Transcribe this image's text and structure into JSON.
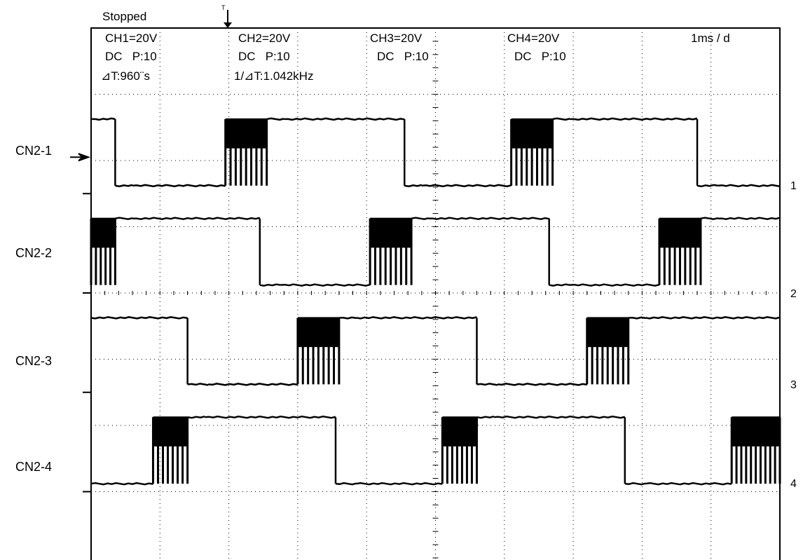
{
  "status": "Stopped",
  "trigger_marker": "T",
  "channels": [
    {
      "name": "CH1=20V",
      "coupling": "DC   P:10"
    },
    {
      "name": "CH2=20V",
      "coupling": "DC   P:10"
    },
    {
      "name": "CH3=20V",
      "coupling": "DC   P:10"
    },
    {
      "name": "CH4=20V",
      "coupling": "DC   P:10"
    }
  ],
  "cursor_delta_t": "⊿T:960¨s",
  "cursor_freq": "1/⊿T:1.042kHz",
  "timebase": "1ms / d",
  "trace_labels": [
    "CN2-1",
    "CN2-2",
    "CN2-3",
    "CN2-4"
  ],
  "ground_markers": [
    "1",
    "2",
    "3",
    "4"
  ],
  "colors": {
    "trace": "#000000",
    "grid": "#000000",
    "background": "#ffffff"
  },
  "chart_data": {
    "type": "line",
    "title": "",
    "xlabel": "",
    "ylabel": "",
    "x_unit": "ms",
    "xlim": [
      0,
      10
    ],
    "divisions_x": 10,
    "divisions_y": 8,
    "grid": "dotted",
    "series": [
      {
        "name": "CN2-1",
        "high_v": 22.5,
        "low_v": 2.4,
        "ground_div": 5.5,
        "levels": [
          [
            0,
            0.35,
            "high"
          ],
          [
            0.35,
            0.6,
            "low"
          ],
          [
            0.6,
            1.95,
            "low"
          ],
          [
            1.95,
            2.55,
            "pwm"
          ],
          [
            2.55,
            2.8,
            "high"
          ],
          [
            2.8,
            4.55,
            "high"
          ],
          [
            4.55,
            4.8,
            "low"
          ],
          [
            4.8,
            6.1,
            "low"
          ],
          [
            6.1,
            6.7,
            "pwm"
          ],
          [
            6.7,
            6.95,
            "high"
          ],
          [
            6.95,
            8.8,
            "high"
          ],
          [
            8.8,
            9.1,
            "low"
          ],
          [
            9.1,
            10,
            "low"
          ]
        ]
      },
      {
        "name": "CN2-2",
        "high_v": 22.5,
        "low_v": 2.4,
        "ground_div": 4.0,
        "levels": [
          [
            0,
            0.35,
            "pwm"
          ],
          [
            0.35,
            0.6,
            "high"
          ],
          [
            0.6,
            2.45,
            "high"
          ],
          [
            2.45,
            2.75,
            "low"
          ],
          [
            2.75,
            4.05,
            "low"
          ],
          [
            4.05,
            4.65,
            "pwm"
          ],
          [
            4.65,
            4.9,
            "high"
          ],
          [
            4.9,
            6.65,
            "high"
          ],
          [
            6.65,
            6.95,
            "low"
          ],
          [
            6.95,
            8.25,
            "low"
          ],
          [
            8.25,
            8.85,
            "pwm"
          ],
          [
            8.85,
            9.1,
            "high"
          ],
          [
            9.1,
            10,
            "high"
          ]
        ]
      },
      {
        "name": "CN2-3",
        "high_v": 22.5,
        "low_v": 2.4,
        "ground_div": 2.5,
        "levels": [
          [
            0,
            1.4,
            "high"
          ],
          [
            1.4,
            1.7,
            "low"
          ],
          [
            1.7,
            3.0,
            "low"
          ],
          [
            3.0,
            3.6,
            "pwm"
          ],
          [
            3.6,
            3.85,
            "high"
          ],
          [
            3.85,
            5.6,
            "high"
          ],
          [
            5.6,
            5.9,
            "low"
          ],
          [
            5.9,
            7.2,
            "low"
          ],
          [
            7.2,
            7.8,
            "pwm"
          ],
          [
            7.8,
            8.05,
            "high"
          ],
          [
            8.05,
            10,
            "high"
          ]
        ]
      },
      {
        "name": "CN2-4",
        "high_v": 22.5,
        "low_v": 2.4,
        "ground_div": 1.0,
        "levels": [
          [
            0,
            0.9,
            "low"
          ],
          [
            0.9,
            1.4,
            "pwm"
          ],
          [
            1.4,
            1.65,
            "high"
          ],
          [
            1.65,
            3.55,
            "high"
          ],
          [
            3.55,
            3.85,
            "low"
          ],
          [
            3.85,
            5.1,
            "low"
          ],
          [
            5.1,
            5.6,
            "pwm"
          ],
          [
            5.6,
            5.85,
            "high"
          ],
          [
            5.85,
            7.75,
            "high"
          ],
          [
            7.75,
            8.05,
            "low"
          ],
          [
            8.05,
            9.3,
            "low"
          ],
          [
            9.3,
            10,
            "pwm"
          ]
        ]
      }
    ]
  }
}
